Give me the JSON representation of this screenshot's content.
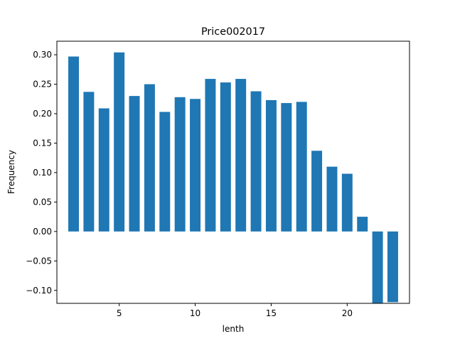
{
  "chart_data": {
    "type": "bar",
    "title": "Price002017",
    "xlabel": "lenth",
    "ylabel": "Frequency",
    "x": [
      2,
      3,
      4,
      5,
      6,
      7,
      8,
      9,
      10,
      11,
      12,
      13,
      14,
      15,
      16,
      17,
      18,
      19,
      20,
      21,
      22,
      23
    ],
    "values": [
      0.297,
      0.237,
      0.209,
      0.304,
      0.23,
      0.25,
      0.203,
      0.228,
      0.225,
      0.259,
      0.253,
      0.259,
      0.238,
      0.223,
      0.218,
      0.22,
      0.137,
      0.11,
      0.098,
      0.025,
      -0.122,
      -0.12
    ],
    "xlim": [
      0.9,
      24.1
    ],
    "ylim": [
      -0.122,
      0.323
    ],
    "xticks": [
      5,
      10,
      15,
      20
    ],
    "yticks": [
      -0.1,
      -0.05,
      0.0,
      0.05,
      0.1,
      0.15,
      0.2,
      0.25,
      0.3
    ],
    "ytick_labels": [
      "−0.10",
      "−0.05",
      "0.00",
      "0.05",
      "0.10",
      "0.15",
      "0.20",
      "0.25",
      "0.30"
    ],
    "bar_width": 0.7,
    "bar_color": "#1f77b4",
    "grid": false
  }
}
